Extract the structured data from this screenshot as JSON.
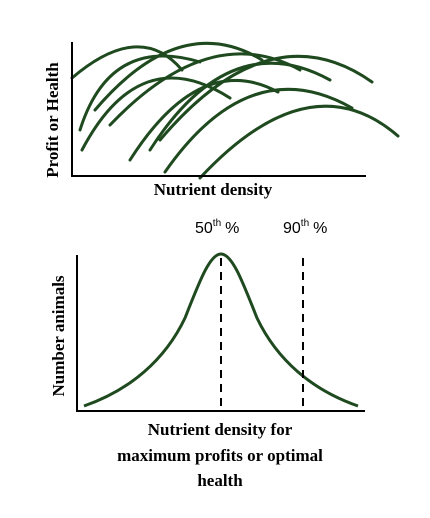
{
  "top_panel": {
    "y_axis_label": "Profit or Health",
    "x_axis_label": "Nutrient density"
  },
  "bottom_panel": {
    "y_axis_label": "Number animals",
    "x_axis_label_lines": [
      "Nutrient density for",
      "maximum profits or optimal",
      "health"
    ],
    "markers": [
      {
        "number": "50",
        "suffix": "th",
        "symbol": "%"
      },
      {
        "number": "90",
        "suffix": "th",
        "symbol": "%"
      }
    ]
  },
  "colors": {
    "curve": "#1f4a1f",
    "axis": "#000000",
    "text": "#000000"
  }
}
